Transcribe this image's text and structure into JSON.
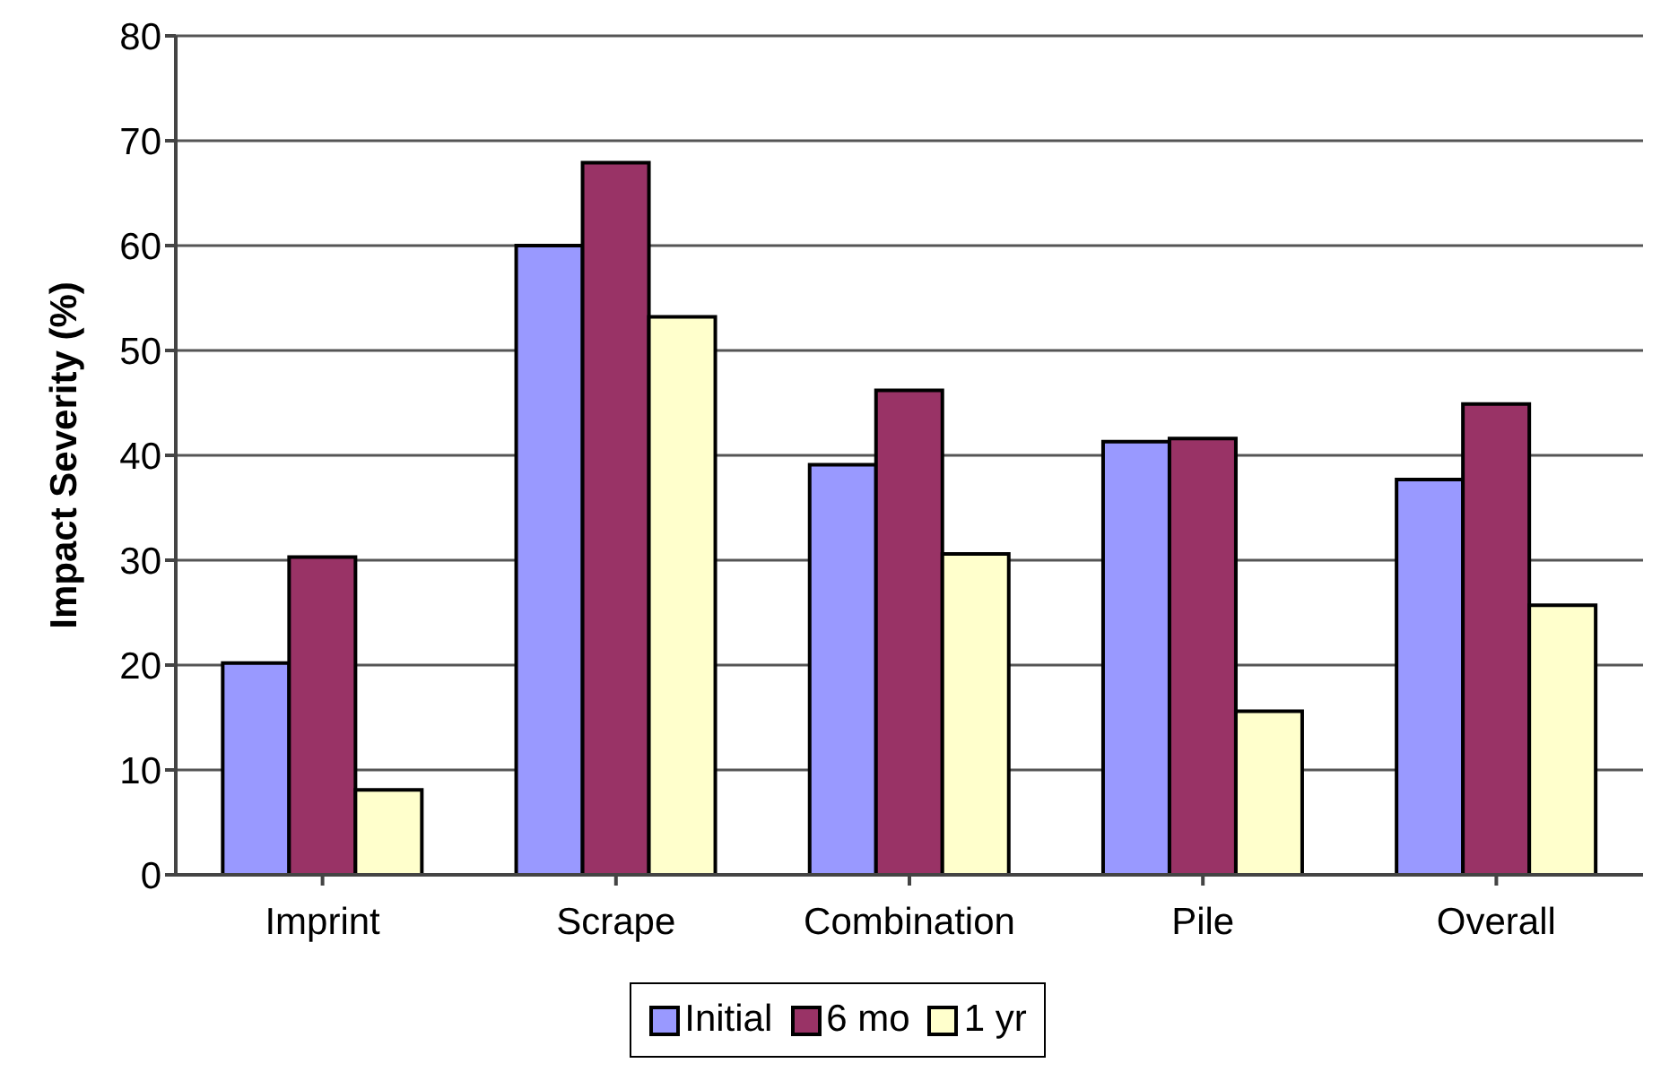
{
  "chart_data": {
    "type": "bar",
    "ylabel": "Impact Severity (%)",
    "categories": [
      "Imprint",
      "Scrape",
      "Combination",
      "Pile",
      "Overall"
    ],
    "series": [
      {
        "name": "Initial",
        "color": "#9999ff",
        "values": [
          20.2,
          60,
          39.1,
          41.3,
          37.7
        ]
      },
      {
        "name": "6 mo",
        "color": "#993366",
        "values": [
          30.3,
          67.9,
          46.2,
          41.6,
          44.9
        ]
      },
      {
        "name": "1 yr",
        "color": "#ffffcc",
        "values": [
          8.1,
          53.2,
          30.6,
          15.6,
          25.7
        ]
      }
    ],
    "ylim": [
      0,
      80
    ],
    "yticks": [
      0,
      10,
      20,
      30,
      40,
      50,
      60,
      70,
      80
    ],
    "grid": "y",
    "legend": "bottom"
  }
}
